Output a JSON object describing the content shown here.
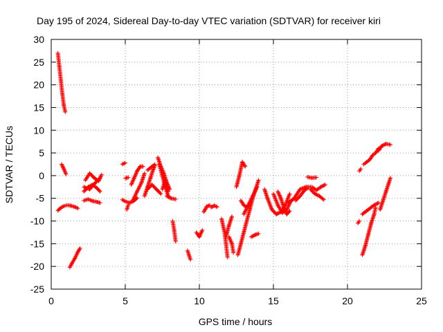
{
  "chart_data": {
    "type": "scatter",
    "title": "Day 195 of 2024, Sidereal Day-to-day VTEC variation (SDTVAR) for receiver kiri",
    "xlabel": "GPS time / hours",
    "ylabel": "SDTVAR / TECUs",
    "xlim": [
      0,
      25
    ],
    "ylim": [
      -25,
      30
    ],
    "xticks": [
      0,
      5,
      10,
      15,
      20,
      25
    ],
    "yticks": [
      -25,
      -20,
      -15,
      -10,
      -5,
      0,
      5,
      10,
      15,
      20,
      25,
      30
    ],
    "grid": true,
    "marker": "+",
    "color": "#ff0000",
    "segments": [
      [
        [
          0.45,
          27
        ],
        [
          0.55,
          24
        ],
        [
          0.65,
          21
        ],
        [
          0.75,
          18
        ],
        [
          0.85,
          15.5
        ],
        [
          0.95,
          14
        ]
      ],
      [
        [
          0.45,
          -7.7
        ],
        [
          0.6,
          -7.2
        ],
        [
          0.8,
          -6.8
        ],
        [
          0.95,
          -6.6
        ]
      ],
      [
        [
          0.7,
          2.5
        ],
        [
          0.85,
          1.5
        ],
        [
          1.0,
          0.3
        ]
      ],
      [
        [
          1.05,
          -6.5
        ],
        [
          1.3,
          -6.6
        ],
        [
          1.6,
          -6.9
        ],
        [
          1.8,
          -7.2
        ]
      ],
      [
        [
          1.25,
          -20.2
        ],
        [
          1.4,
          -19.3
        ],
        [
          1.6,
          -18.2
        ],
        [
          1.8,
          -16.8
        ],
        [
          1.95,
          -16.0
        ]
      ],
      [
        [
          2.2,
          -3.5
        ],
        [
          2.5,
          -2.5
        ],
        [
          2.8,
          -2.0
        ],
        [
          3.1,
          -2.8
        ],
        [
          3.3,
          -3.5
        ]
      ],
      [
        [
          2.2,
          -5.5
        ],
        [
          2.5,
          -5.2
        ],
        [
          2.8,
          -5.6
        ],
        [
          3.1,
          -5.8
        ],
        [
          3.3,
          -6.0
        ]
      ],
      [
        [
          2.3,
          -1.0
        ],
        [
          2.6,
          0.5
        ],
        [
          2.9,
          -0.5
        ],
        [
          3.2,
          -1.2
        ],
        [
          3.4,
          0.2
        ]
      ],
      [
        [
          2.2,
          -2.5
        ],
        [
          2.6,
          -3.0
        ],
        [
          3.0,
          -1.5
        ],
        [
          3.3,
          -0.5
        ]
      ],
      [
        [
          4.8,
          2.5
        ],
        [
          5.0,
          2.8
        ]
      ],
      [
        [
          4.8,
          -5.3
        ],
        [
          5.0,
          -5.7
        ],
        [
          5.3,
          -6.0
        ],
        [
          5.6,
          -5.5
        ],
        [
          5.8,
          -4.9
        ]
      ],
      [
        [
          5.0,
          -0.6
        ],
        [
          5.2,
          -0.4
        ]
      ],
      [
        [
          5.1,
          -7.5
        ],
        [
          5.2,
          -6.5
        ]
      ],
      [
        [
          5.4,
          -2.0
        ],
        [
          5.6,
          -0.5
        ],
        [
          5.8,
          1.0
        ],
        [
          6.0,
          2.0
        ],
        [
          6.2,
          2.0
        ]
      ],
      [
        [
          5.5,
          -5.5
        ],
        [
          5.8,
          -3.5
        ],
        [
          6.1,
          -1.5
        ],
        [
          6.3,
          0.5
        ]
      ],
      [
        [
          6.3,
          -4.5
        ],
        [
          6.5,
          -2.5
        ],
        [
          6.7,
          -0.5
        ],
        [
          6.9,
          1.5
        ],
        [
          7.0,
          2.2
        ]
      ],
      [
        [
          6.5,
          -3.0
        ],
        [
          6.8,
          -2.0
        ],
        [
          7.1,
          -3.0
        ],
        [
          7.4,
          -4.0
        ]
      ],
      [
        [
          6.5,
          1.2
        ],
        [
          6.8,
          2.0
        ],
        [
          7.0,
          2.5
        ]
      ],
      [
        [
          7.2,
          4.0
        ],
        [
          7.4,
          2.0
        ],
        [
          7.6,
          0.5
        ],
        [
          7.8,
          -1.5
        ],
        [
          8.0,
          -3.0
        ]
      ],
      [
        [
          7.3,
          2.5
        ],
        [
          7.5,
          0.0
        ],
        [
          7.7,
          -2.5
        ],
        [
          7.9,
          -4.5
        ]
      ],
      [
        [
          7.5,
          -3.0
        ],
        [
          7.7,
          -1.0
        ],
        [
          7.9,
          -3.5
        ]
      ],
      [
        [
          7.8,
          -4.5
        ],
        [
          8.1,
          -5.0
        ],
        [
          8.4,
          -5.2
        ]
      ],
      [
        [
          8.2,
          -10.0
        ],
        [
          8.3,
          -12.0
        ],
        [
          8.4,
          -14.5
        ]
      ],
      [
        [
          9.2,
          -16.5
        ],
        [
          9.3,
          -17.5
        ],
        [
          9.4,
          -18.5
        ]
      ],
      [
        [
          9.8,
          -12.5
        ],
        [
          10.0,
          -13.5
        ],
        [
          10.2,
          -12.0
        ]
      ],
      [
        [
          10.3,
          -8.0
        ],
        [
          10.5,
          -6.8
        ],
        [
          10.7,
          -6.5
        ]
      ],
      [
        [
          10.8,
          -7.0
        ],
        [
          11.0,
          -6.6
        ],
        [
          11.2,
          -6.9
        ]
      ],
      [
        [
          11.5,
          -9.5
        ],
        [
          11.7,
          -12.5
        ],
        [
          11.8,
          -15.0
        ],
        [
          11.9,
          -18.0
        ]
      ],
      [
        [
          11.8,
          -13.5
        ],
        [
          12.0,
          -11.0
        ],
        [
          12.2,
          -9.0
        ]
      ],
      [
        [
          12.0,
          -13.5
        ],
        [
          12.2,
          -15.0
        ],
        [
          12.3,
          -17.0
        ]
      ],
      [
        [
          12.6,
          -17.5
        ],
        [
          12.8,
          -15.0
        ],
        [
          13.0,
          -12.5
        ],
        [
          13.2,
          -10.0
        ],
        [
          13.4,
          -7.5
        ],
        [
          13.6,
          -5.0
        ],
        [
          13.8,
          -3.0
        ],
        [
          14.0,
          -1.0
        ]
      ],
      [
        [
          12.5,
          -2.5
        ],
        [
          12.7,
          0.0
        ],
        [
          12.9,
          3.0
        ],
        [
          13.1,
          2.0
        ]
      ],
      [
        [
          13.0,
          -8.5
        ],
        [
          13.3,
          -6.5
        ],
        [
          13.6,
          -4.5
        ],
        [
          13.9,
          -2.5
        ]
      ],
      [
        [
          12.8,
          -5.5
        ],
        [
          13.0,
          -6.5
        ],
        [
          13.2,
          -7.0
        ]
      ],
      [
        [
          13.5,
          -13.5
        ],
        [
          13.8,
          -13.0
        ],
        [
          14.0,
          -12.8
        ]
      ],
      [
        [
          14.4,
          -3.0
        ],
        [
          14.6,
          -5.0
        ],
        [
          14.9,
          -7.5
        ],
        [
          15.2,
          -8.5
        ],
        [
          15.5,
          -8.0
        ],
        [
          15.8,
          -6.5
        ],
        [
          16.1,
          -4.0
        ]
      ],
      [
        [
          15.0,
          -4.0
        ],
        [
          15.3,
          -6.5
        ],
        [
          15.6,
          -8.2
        ],
        [
          15.9,
          -7.5
        ],
        [
          16.2,
          -5.5
        ]
      ],
      [
        [
          15.3,
          -3.5
        ],
        [
          15.5,
          -5.0
        ],
        [
          15.7,
          -7.0
        ],
        [
          15.9,
          -8.5
        ],
        [
          16.1,
          -7.8
        ]
      ],
      [
        [
          16.0,
          -6.0
        ],
        [
          16.4,
          -5.0
        ],
        [
          16.8,
          -3.0
        ],
        [
          17.2,
          -2.5
        ],
        [
          17.5,
          -2.5
        ]
      ],
      [
        [
          16.5,
          -5.5
        ],
        [
          16.8,
          -4.5
        ],
        [
          17.1,
          -3.2
        ],
        [
          17.3,
          -2.8
        ]
      ],
      [
        [
          17.3,
          -0.3
        ],
        [
          17.6,
          -0.5
        ],
        [
          17.9,
          -0.4
        ]
      ],
      [
        [
          17.5,
          -3.0
        ],
        [
          17.8,
          -4.0
        ],
        [
          18.1,
          -4.5
        ],
        [
          18.4,
          -5.3
        ]
      ],
      [
        [
          17.6,
          -2.5
        ],
        [
          17.9,
          -3.2
        ],
        [
          18.2,
          -2.5
        ],
        [
          18.5,
          -2.0
        ]
      ],
      [
        [
          20.7,
          -10.5
        ],
        [
          20.8,
          -10.0
        ]
      ],
      [
        [
          21.0,
          -17.5
        ],
        [
          21.2,
          -15.5
        ],
        [
          21.4,
          -13.0
        ],
        [
          21.6,
          -10.5
        ],
        [
          21.8,
          -8.5
        ],
        [
          21.9,
          -7.0
        ]
      ],
      [
        [
          20.8,
          1.0
        ],
        [
          20.9,
          1.5
        ]
      ],
      [
        [
          21.1,
          2.5
        ],
        [
          21.3,
          3.0
        ],
        [
          21.5,
          3.5
        ],
        [
          21.7,
          4.5
        ],
        [
          21.9,
          5.0
        ],
        [
          22.1,
          6.0
        ]
      ],
      [
        [
          22.1,
          5.5
        ],
        [
          22.3,
          6.5
        ],
        [
          22.6,
          7.0
        ],
        [
          22.9,
          6.8
        ]
      ],
      [
        [
          21.0,
          -8.5
        ],
        [
          21.4,
          -7.5
        ],
        [
          21.8,
          -6.5
        ],
        [
          22.1,
          -6.0
        ]
      ],
      [
        [
          22.2,
          -7.5
        ],
        [
          22.4,
          -5.5
        ],
        [
          22.6,
          -3.5
        ],
        [
          22.8,
          -1.5
        ],
        [
          22.9,
          -0.5
        ]
      ]
    ]
  }
}
